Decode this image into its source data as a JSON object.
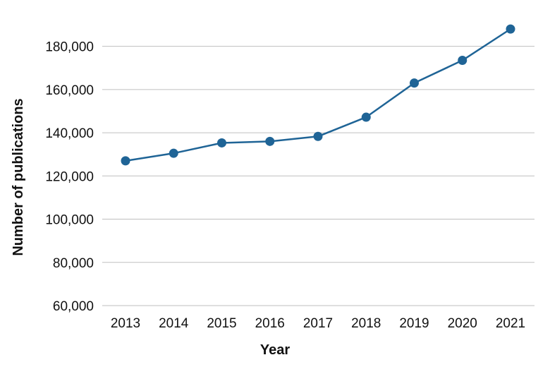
{
  "chart_data": {
    "type": "line",
    "title": "",
    "xlabel": "Year",
    "ylabel": "Number of publications",
    "categories": [
      "2013",
      "2014",
      "2015",
      "2016",
      "2017",
      "2018",
      "2019",
      "2020",
      "2021"
    ],
    "series": [
      {
        "values": [
          127000,
          130500,
          135300,
          136000,
          138300,
          147200,
          163000,
          173500,
          188000
        ]
      }
    ],
    "yticks": [
      60000,
      80000,
      100000,
      120000,
      140000,
      160000,
      180000
    ],
    "ytick_labels": [
      "60,000",
      "80,000",
      "100,000",
      "120,000",
      "140,000",
      "160,000",
      "180,000"
    ],
    "ylim": [
      60000,
      190000
    ],
    "grid": "horizontal",
    "legend": "none",
    "colors": {
      "line": "#1f6496",
      "grid": "#bfbfbf",
      "text": "#111111"
    }
  }
}
